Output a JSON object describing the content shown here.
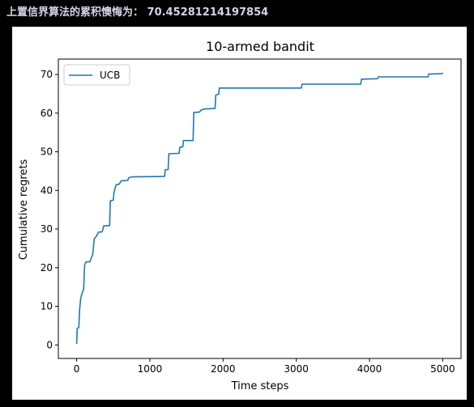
{
  "header": {
    "text": "上置信界算法的累积懊悔为： 70.45281214197854"
  },
  "colors": {
    "background": "#000000",
    "figure": "#ffffff",
    "series": "#1f77b4",
    "header_text": "#d4d4e8"
  },
  "chart_data": {
    "type": "line",
    "title": "10-armed bandit",
    "xlabel": "Time steps",
    "ylabel": "Cumulative regrets",
    "xlim": [
      -250,
      5250
    ],
    "ylim": [
      -3.5,
      74
    ],
    "xticks": [
      0,
      1000,
      2000,
      3000,
      4000,
      5000
    ],
    "yticks": [
      0,
      10,
      20,
      30,
      40,
      50,
      60,
      70
    ],
    "grid": false,
    "legend": "top-left",
    "series": [
      {
        "name": "UCB",
        "color": "#1f77b4",
        "points": [
          [
            0,
            0.3
          ],
          [
            8,
            4.3
          ],
          [
            30,
            4.5
          ],
          [
            40,
            9.0
          ],
          [
            55,
            12.0
          ],
          [
            75,
            13.5
          ],
          [
            95,
            14.3
          ],
          [
            110,
            20.8
          ],
          [
            130,
            21.5
          ],
          [
            180,
            21.5
          ],
          [
            200,
            22.5
          ],
          [
            220,
            23.5
          ],
          [
            240,
            27.4
          ],
          [
            270,
            28.2
          ],
          [
            300,
            29.2
          ],
          [
            350,
            29.3
          ],
          [
            370,
            30.8
          ],
          [
            450,
            30.9
          ],
          [
            460,
            37.3
          ],
          [
            500,
            37.5
          ],
          [
            510,
            39.5
          ],
          [
            540,
            41.5
          ],
          [
            580,
            41.6
          ],
          [
            610,
            42.5
          ],
          [
            700,
            42.6
          ],
          [
            710,
            43.3
          ],
          [
            760,
            43.5
          ],
          [
            1200,
            43.6
          ],
          [
            1210,
            45.3
          ],
          [
            1250,
            45.4
          ],
          [
            1260,
            49.5
          ],
          [
            1400,
            49.6
          ],
          [
            1410,
            51.2
          ],
          [
            1450,
            51.3
          ],
          [
            1460,
            52.9
          ],
          [
            1590,
            52.9
          ],
          [
            1600,
            60.2
          ],
          [
            1680,
            60.3
          ],
          [
            1700,
            60.8
          ],
          [
            1750,
            61.1
          ],
          [
            1890,
            61.2
          ],
          [
            1900,
            64.7
          ],
          [
            1940,
            64.9
          ],
          [
            1950,
            66.5
          ],
          [
            3070,
            66.5
          ],
          [
            3080,
            67.5
          ],
          [
            3880,
            67.5
          ],
          [
            3890,
            68.8
          ],
          [
            4110,
            68.9
          ],
          [
            4120,
            69.4
          ],
          [
            4800,
            69.4
          ],
          [
            4810,
            70.1
          ],
          [
            4990,
            70.2
          ],
          [
            5000,
            70.45
          ]
        ]
      }
    ]
  }
}
